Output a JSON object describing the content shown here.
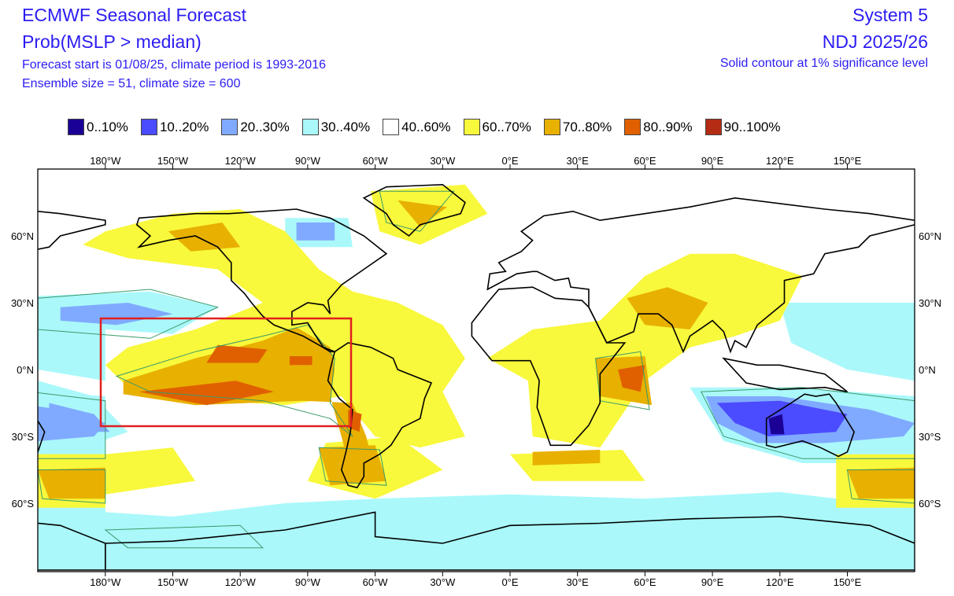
{
  "header": {
    "title": "ECMWF Seasonal Forecast",
    "parameter": "Prob(MSLP > median)",
    "forecast_info": "Forecast start is 01/08/25, climate period is 1993-2016",
    "ensemble_info": "Ensemble size = 51, climate size = 600",
    "system": "System 5",
    "period": "NDJ 2025/26",
    "significance_note": "Solid contour at 1% significance level"
  },
  "legend": [
    {
      "label": "0..10%",
      "color": "#1b0096"
    },
    {
      "label": "10..20%",
      "color": "#4b4bff"
    },
    {
      "label": "20..30%",
      "color": "#80aaff"
    },
    {
      "label": "30..40%",
      "color": "#aaf8fa"
    },
    {
      "label": "40..60%",
      "color": "#ffffff"
    },
    {
      "label": "60..70%",
      "color": "#f8f83c"
    },
    {
      "label": "70..80%",
      "color": "#e8b000"
    },
    {
      "label": "80..90%",
      "color": "#e06000"
    },
    {
      "label": "90..100%",
      "color": "#b42c14"
    }
  ],
  "map": {
    "lon_labels": [
      "180°W",
      "150°W",
      "120°W",
      "90°W",
      "60°W",
      "30°W",
      "0°E",
      "30°E",
      "60°E",
      "90°E",
      "120°E",
      "150°E"
    ],
    "lat_labels": [
      "60°N",
      "30°N",
      "0°N",
      "30°S",
      "60°S"
    ],
    "contour_color": "#3a9a6a",
    "region_box_color": "#e02020"
  }
}
